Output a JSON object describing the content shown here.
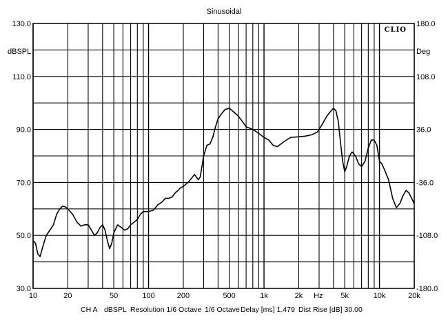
{
  "chart_data": {
    "type": "line",
    "title": "Sinusoidal",
    "brand": "CLIO",
    "left_axis": {
      "label": "dBSPL",
      "range": [
        30,
        130
      ],
      "ticks": [
        {
          "value": 130,
          "label": "130.0"
        },
        {
          "value": 110,
          "label": "110.0"
        },
        {
          "value": 90,
          "label": "90.0"
        },
        {
          "value": 70,
          "label": "70.0"
        },
        {
          "value": 50,
          "label": "50.0"
        },
        {
          "value": 30,
          "label": "30.0"
        }
      ]
    },
    "right_axis": {
      "label": "Deg",
      "range": [
        -180,
        180
      ],
      "ticks": [
        {
          "value": 180,
          "label": "180.0"
        },
        {
          "value": 108,
          "label": "108.0"
        },
        {
          "value": 36,
          "label": "36.0"
        },
        {
          "value": -36,
          "label": "-36.0"
        },
        {
          "value": -108,
          "label": "-108.0"
        },
        {
          "value": -180,
          "label": "-180.0"
        }
      ]
    },
    "x_axis": {
      "scale": "log",
      "range": [
        10,
        20000
      ],
      "unit_label": "Hz",
      "ticks": [
        {
          "value": 10,
          "label": "10"
        },
        {
          "value": 20,
          "label": "20"
        },
        {
          "value": 50,
          "label": "50"
        },
        {
          "value": 100,
          "label": "100"
        },
        {
          "value": 200,
          "label": "200"
        },
        {
          "value": 500,
          "label": "500"
        },
        {
          "value": 1000,
          "label": "1k"
        },
        {
          "value": 2000,
          "label": "2k"
        },
        {
          "value": 5000,
          "label": "5k"
        },
        {
          "value": 10000,
          "label": "10k"
        },
        {
          "value": 20000,
          "label": "20k"
        }
      ]
    },
    "grid": true,
    "footer": {
      "channel": "CH A",
      "unit": "dBSPL",
      "resolution": "Resolution 1/6 Octave",
      "smoothing": "1/6 Octave",
      "delay": "Delay [ms] 1.479",
      "dist_rise": "Dist Rise [dB] 30.00"
    },
    "series": [
      {
        "color": "#000000",
        "points": [
          [
            10,
            48
          ],
          [
            10.5,
            47
          ],
          [
            11,
            43
          ],
          [
            11.5,
            42
          ],
          [
            12,
            45
          ],
          [
            13,
            50
          ],
          [
            14,
            52
          ],
          [
            15,
            54
          ],
          [
            16,
            58
          ],
          [
            17,
            60
          ],
          [
            18,
            61
          ],
          [
            19,
            60.8
          ],
          [
            20,
            60
          ],
          [
            22,
            58
          ],
          [
            24,
            55
          ],
          [
            26,
            53.5
          ],
          [
            28,
            54
          ],
          [
            30,
            54
          ],
          [
            32,
            52
          ],
          [
            34,
            50
          ],
          [
            36,
            51
          ],
          [
            38,
            53
          ],
          [
            40,
            54
          ],
          [
            42,
            52
          ],
          [
            44,
            48
          ],
          [
            46,
            45
          ],
          [
            48,
            47
          ],
          [
            50,
            51
          ],
          [
            54,
            54
          ],
          [
            58,
            53
          ],
          [
            62,
            52
          ],
          [
            66,
            52.5
          ],
          [
            70,
            54
          ],
          [
            75,
            55
          ],
          [
            80,
            56
          ],
          [
            85,
            58
          ],
          [
            90,
            59
          ],
          [
            100,
            59
          ],
          [
            110,
            59.5
          ],
          [
            120,
            61.5
          ],
          [
            130,
            62.5
          ],
          [
            140,
            64
          ],
          [
            150,
            64
          ],
          [
            160,
            64.5
          ],
          [
            170,
            66
          ],
          [
            180,
            67
          ],
          [
            190,
            68
          ],
          [
            200,
            68.5
          ],
          [
            220,
            70
          ],
          [
            240,
            72
          ],
          [
            250,
            73
          ],
          [
            260,
            72
          ],
          [
            270,
            71
          ],
          [
            280,
            72
          ],
          [
            290,
            76
          ],
          [
            300,
            80
          ],
          [
            320,
            84
          ],
          [
            340,
            84.5
          ],
          [
            360,
            87
          ],
          [
            380,
            91
          ],
          [
            400,
            94
          ],
          [
            430,
            96
          ],
          [
            460,
            97.5
          ],
          [
            500,
            98
          ],
          [
            550,
            96.5
          ],
          [
            600,
            95
          ],
          [
            650,
            93
          ],
          [
            700,
            91
          ],
          [
            800,
            90
          ],
          [
            900,
            88.5
          ],
          [
            1000,
            87
          ],
          [
            1100,
            86
          ],
          [
            1200,
            84
          ],
          [
            1300,
            83.5
          ],
          [
            1400,
            84.5
          ],
          [
            1500,
            85.5
          ],
          [
            1700,
            87
          ],
          [
            2000,
            87.2
          ],
          [
            2300,
            87.5
          ],
          [
            2600,
            88
          ],
          [
            2900,
            89
          ],
          [
            3200,
            92
          ],
          [
            3500,
            95
          ],
          [
            3800,
            97
          ],
          [
            4000,
            98
          ],
          [
            4200,
            97
          ],
          [
            4400,
            93
          ],
          [
            4600,
            85
          ],
          [
            4800,
            78
          ],
          [
            5000,
            74
          ],
          [
            5200,
            76
          ],
          [
            5500,
            80
          ],
          [
            5800,
            81.5
          ],
          [
            6200,
            80
          ],
          [
            6600,
            77
          ],
          [
            7000,
            76
          ],
          [
            7500,
            78
          ],
          [
            8000,
            83
          ],
          [
            8500,
            86
          ],
          [
            9000,
            86
          ],
          [
            9500,
            84
          ],
          [
            10000,
            78
          ],
          [
            10500,
            77
          ],
          [
            11000,
            75
          ],
          [
            12000,
            71
          ],
          [
            13000,
            64
          ],
          [
            14000,
            60.5
          ],
          [
            15000,
            62
          ],
          [
            16000,
            65
          ],
          [
            17000,
            67
          ],
          [
            18000,
            66
          ],
          [
            19000,
            64
          ],
          [
            20000,
            62
          ]
        ]
      }
    ]
  }
}
